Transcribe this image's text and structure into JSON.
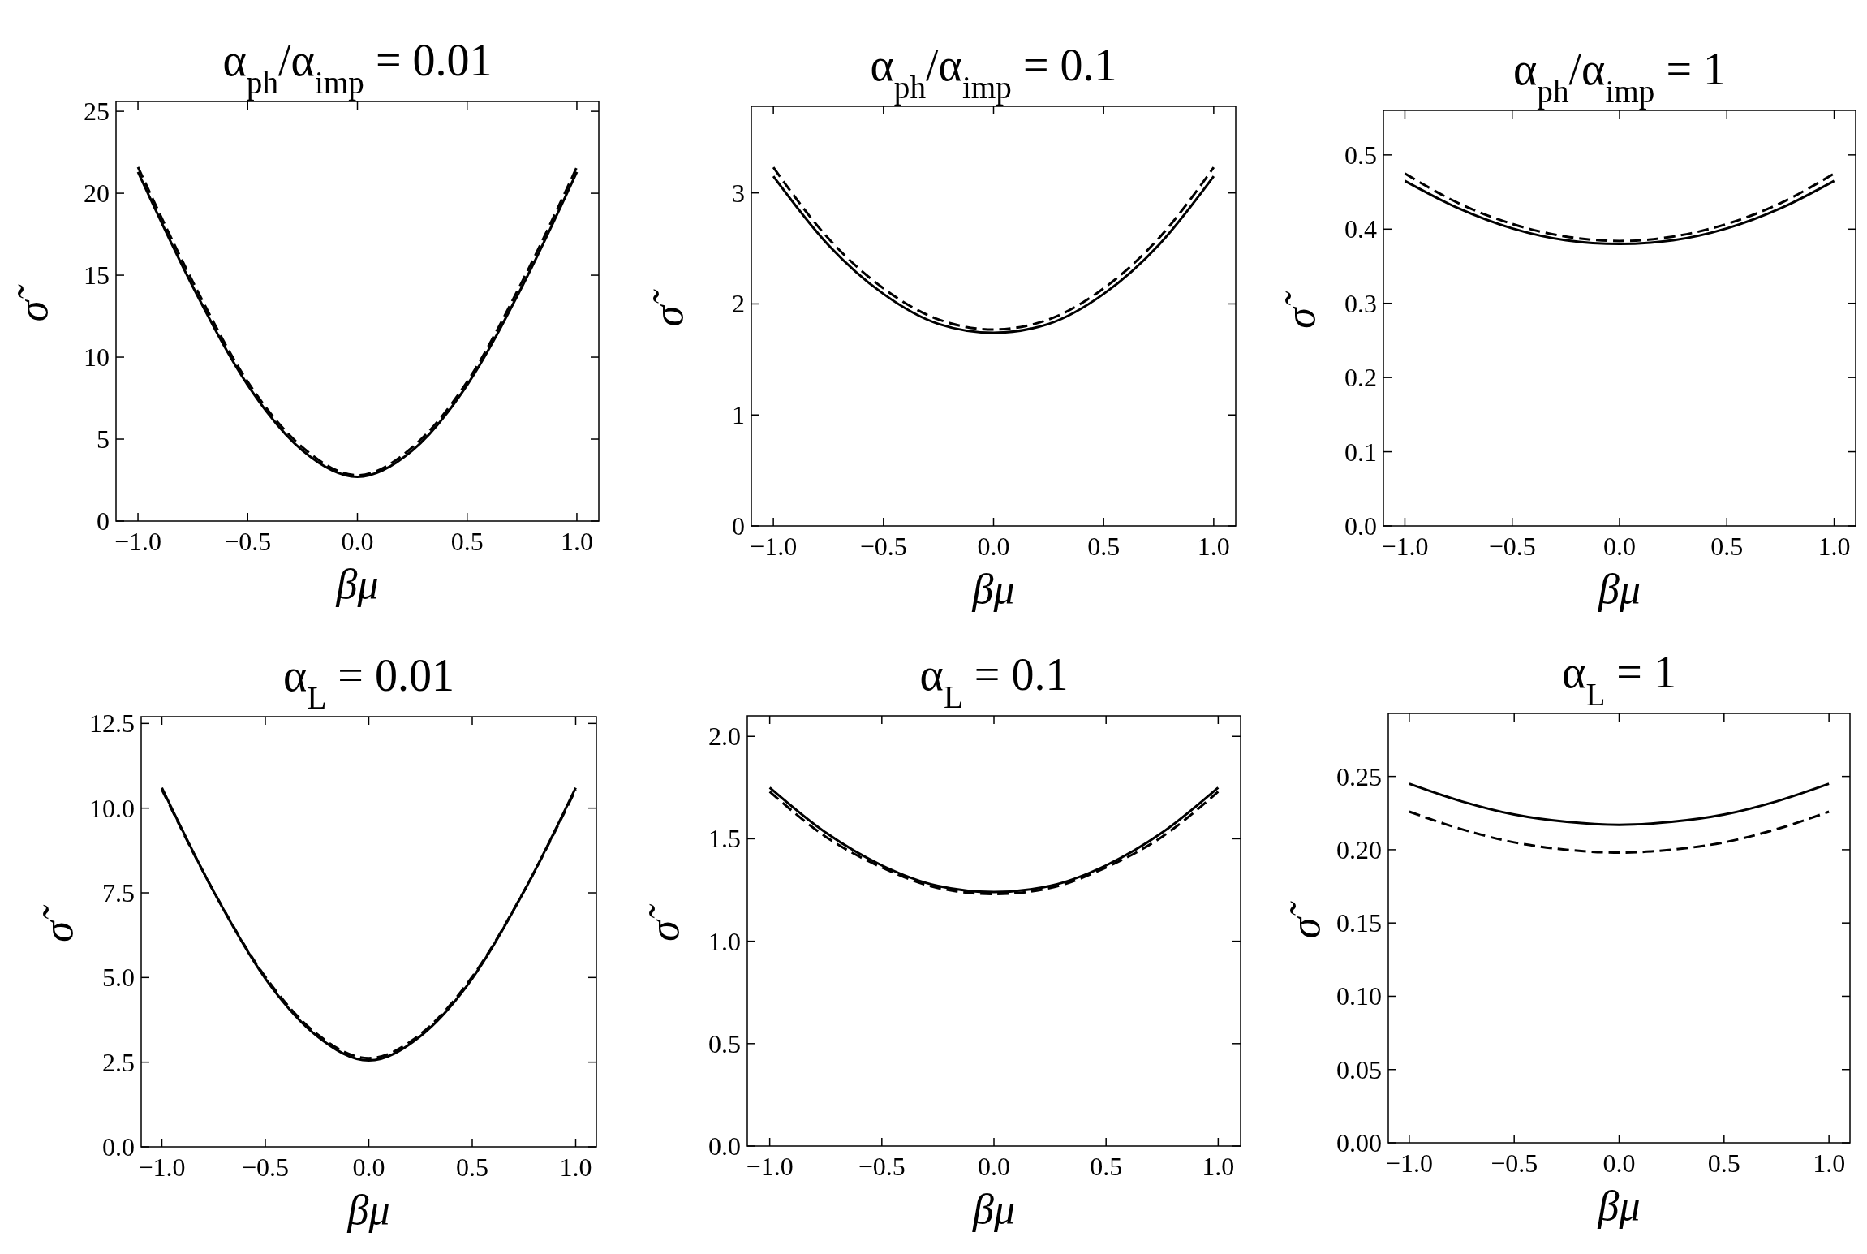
{
  "chart_data": [
    {
      "type": "line",
      "title": "α$_{ph}$/α$_{imp}$ = 0.01",
      "xlabel": "βμ",
      "ylabel": "σ̃",
      "x": [
        -1,
        -0.75,
        -0.5,
        -0.25,
        0,
        0.25,
        0.5,
        0.75,
        1
      ],
      "xlim": [
        -1.1,
        1.1
      ],
      "xticks": [
        {
          "value": -1,
          "label": "−1.0"
        },
        {
          "value": -0.5,
          "label": "−0.5"
        },
        {
          "value": 0,
          "label": "0.0"
        },
        {
          "value": 0.5,
          "label": "0.5"
        },
        {
          "value": 1,
          "label": "1.0"
        }
      ],
      "ylim": [
        0,
        25.6
      ],
      "yticks": [
        0,
        5,
        10,
        15,
        20,
        25
      ],
      "grid": false,
      "series": [
        {
          "color": "#000000",
          "line_style": "solid",
          "values": [
            21.3,
            14.3,
            8.3,
            4.3,
            2.7,
            4.3,
            8.3,
            14.3,
            21.3
          ]
        },
        {
          "color": "#000000",
          "line_style": "dashed",
          "values": [
            21.6,
            14.6,
            8.5,
            4.5,
            2.8,
            4.5,
            8.5,
            14.6,
            21.6
          ]
        }
      ]
    },
    {
      "type": "line",
      "title": "α$_{ph}$/α$_{imp}$ = 0.1",
      "xlabel": "βμ",
      "ylabel": "σ̃",
      "x": [
        -1,
        -0.75,
        -0.5,
        -0.25,
        0,
        0.25,
        0.5,
        0.75,
        1
      ],
      "xlim": [
        -1.1,
        1.1
      ],
      "xticks": [
        {
          "value": -1,
          "label": "−1.0"
        },
        {
          "value": -0.5,
          "label": "−0.5"
        },
        {
          "value": 0,
          "label": "0.0"
        },
        {
          "value": 0.5,
          "label": "0.5"
        },
        {
          "value": 1,
          "label": "1.0"
        }
      ],
      "ylim": [
        0,
        3.78
      ],
      "yticks": [
        0,
        1,
        2,
        3
      ],
      "grid": false,
      "series": [
        {
          "color": "#000000",
          "line_style": "solid",
          "values": [
            3.15,
            2.53,
            2.09,
            1.82,
            1.74,
            1.82,
            2.09,
            2.53,
            3.15
          ]
        },
        {
          "color": "#000000",
          "line_style": "dashed",
          "values": [
            3.23,
            2.59,
            2.14,
            1.86,
            1.77,
            1.86,
            2.14,
            2.59,
            3.23
          ]
        }
      ]
    },
    {
      "type": "line",
      "title": "α$_{ph}$/α$_{imp}$ = 1",
      "xlabel": "βμ",
      "ylabel": "σ̃",
      "x": [
        -1,
        -0.75,
        -0.5,
        -0.25,
        0,
        0.25,
        0.5,
        0.75,
        1
      ],
      "xlim": [
        -1.1,
        1.1
      ],
      "xticks": [
        {
          "value": -1,
          "label": "−1.0"
        },
        {
          "value": -0.5,
          "label": "−0.5"
        },
        {
          "value": 0,
          "label": "0.0"
        },
        {
          "value": 0.5,
          "label": "0.5"
        },
        {
          "value": 1,
          "label": "1.0"
        }
      ],
      "ylim": [
        0,
        0.56
      ],
      "yticks": [
        {
          "value": 0,
          "label": "0.0"
        },
        0.1,
        0.2,
        0.3,
        0.4,
        0.5
      ],
      "grid": false,
      "series": [
        {
          "color": "#000000",
          "line_style": "solid",
          "values": [
            0.465,
            0.428,
            0.401,
            0.385,
            0.38,
            0.385,
            0.401,
            0.428,
            0.465
          ]
        },
        {
          "color": "#000000",
          "line_style": "dashed",
          "values": [
            0.475,
            0.435,
            0.407,
            0.39,
            0.384,
            0.39,
            0.407,
            0.435,
            0.475
          ]
        }
      ]
    },
    {
      "type": "line",
      "title": "α$_{L}$ = 0.01",
      "xlabel": "βμ",
      "ylabel": "σ̃",
      "x": [
        -1,
        -0.75,
        -0.5,
        -0.25,
        0,
        0.25,
        0.5,
        0.75,
        1
      ],
      "xlim": [
        -1.1,
        1.1
      ],
      "xticks": [
        {
          "value": -1,
          "label": "−1.0"
        },
        {
          "value": -0.5,
          "label": "−0.5"
        },
        {
          "value": 0,
          "label": "0.0"
        },
        {
          "value": 0.5,
          "label": "0.5"
        },
        {
          "value": 1,
          "label": "1.0"
        }
      ],
      "ylim": [
        0,
        12.7
      ],
      "yticks": [
        {
          "value": 0,
          "label": "0.0"
        },
        2.5,
        {
          "value": 5,
          "label": "5.0"
        },
        7.5,
        {
          "value": 10,
          "label": "10.0"
        },
        12.5
      ],
      "grid": false,
      "series": [
        {
          "color": "#000000",
          "line_style": "solid",
          "values": [
            10.6,
            7.54,
            4.97,
            3.27,
            2.55,
            3.27,
            4.97,
            7.54,
            10.6
          ]
        },
        {
          "color": "#000000",
          "line_style": "dashed",
          "values": [
            10.55,
            7.55,
            5.02,
            3.33,
            2.62,
            3.33,
            5.02,
            7.55,
            10.55
          ]
        }
      ]
    },
    {
      "type": "line",
      "title": "α$_{L}$ = 0.1",
      "xlabel": "βμ",
      "ylabel": "σ̃",
      "x": [
        -1,
        -0.75,
        -0.5,
        -0.25,
        0,
        0.25,
        0.5,
        0.75,
        1
      ],
      "xlim": [
        -1.1,
        1.1
      ],
      "xticks": [
        {
          "value": -1,
          "label": "−1.0"
        },
        {
          "value": -0.5,
          "label": "−0.5"
        },
        {
          "value": 0,
          "label": "0.0"
        },
        {
          "value": 0.5,
          "label": "0.5"
        },
        {
          "value": 1,
          "label": "1.0"
        }
      ],
      "ylim": [
        0,
        2.1
      ],
      "yticks": [
        {
          "value": 0,
          "label": "0.0"
        },
        0.5,
        {
          "value": 1,
          "label": "1.0"
        },
        1.5,
        {
          "value": 2,
          "label": "2.0"
        }
      ],
      "grid": false,
      "series": [
        {
          "color": "#000000",
          "line_style": "solid",
          "values": [
            1.75,
            1.53,
            1.37,
            1.27,
            1.24,
            1.27,
            1.37,
            1.53,
            1.75
          ]
        },
        {
          "color": "#000000",
          "line_style": "dashed",
          "values": [
            1.73,
            1.51,
            1.36,
            1.26,
            1.23,
            1.26,
            1.36,
            1.51,
            1.73
          ]
        }
      ]
    },
    {
      "type": "line",
      "title": "α$_{L}$ = 1",
      "xlabel": "βμ",
      "ylabel": "σ̃",
      "x": [
        -1,
        -0.75,
        -0.5,
        -0.25,
        0,
        0.25,
        0.5,
        0.75,
        1
      ],
      "xlim": [
        -1.1,
        1.1
      ],
      "xticks": [
        {
          "value": -1,
          "label": "−1.0"
        },
        {
          "value": -0.5,
          "label": "−0.5"
        },
        {
          "value": 0,
          "label": "0.0"
        },
        {
          "value": 0.5,
          "label": "0.5"
        },
        {
          "value": 1,
          "label": "1.0"
        }
      ],
      "ylim": [
        0,
        0.293
      ],
      "yticks": [
        {
          "value": 0,
          "label": "0.00"
        },
        0.05,
        {
          "value": 0.1,
          "label": "0.10"
        },
        0.15,
        {
          "value": 0.2,
          "label": "0.20"
        },
        0.25
      ],
      "grid": false,
      "series": [
        {
          "color": "#000000",
          "line_style": "solid",
          "values": [
            0.245,
            0.233,
            0.224,
            0.219,
            0.217,
            0.219,
            0.224,
            0.233,
            0.245
          ]
        },
        {
          "color": "#000000",
          "line_style": "dashed",
          "values": [
            0.226,
            0.214,
            0.205,
            0.2,
            0.198,
            0.2,
            0.205,
            0.214,
            0.226
          ]
        }
      ]
    }
  ]
}
